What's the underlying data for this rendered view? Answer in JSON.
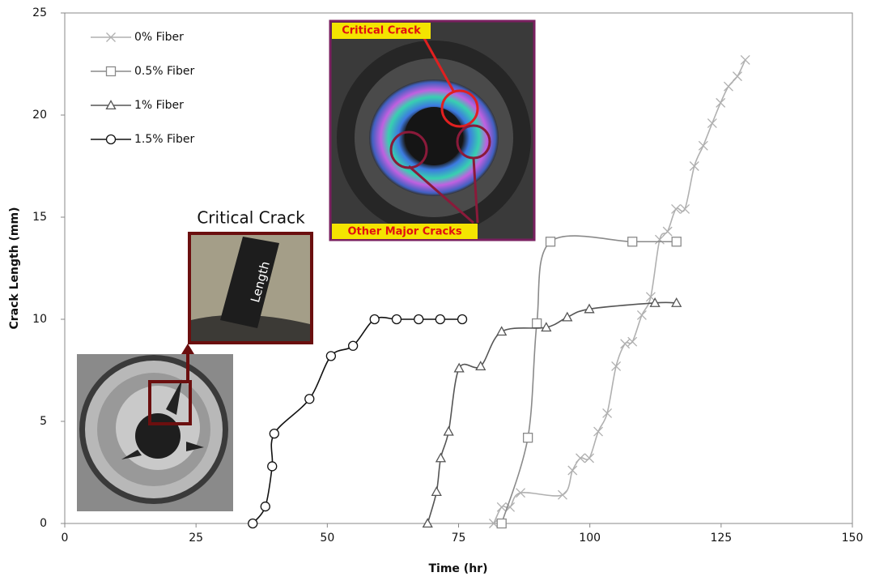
{
  "chart_data": {
    "type": "line",
    "x_label": "Time (hr)",
    "y_label": "Crack Length (mm)",
    "xlim": [
      0,
      150
    ],
    "xticks": [
      0,
      25,
      50,
      75,
      100,
      125,
      150
    ],
    "ylim": [
      0,
      25
    ],
    "yticks": [
      0,
      5,
      10,
      15,
      20,
      25
    ],
    "legend": "upper left",
    "grid": false,
    "annotations": [
      "Critical Crack",
      "Length",
      "Critical Crack",
      "Other Major Cracks"
    ],
    "series": [
      {
        "name": "0% Fiber",
        "color": "#b0b0b0",
        "marker": "x",
        "x": [
          81.7,
          83.2,
          84.8,
          86.8,
          94.8,
          96.7,
          98.2,
          99.9,
          101.6,
          103.3,
          105.0,
          106.7,
          108.1,
          109.9,
          111.6,
          113.3,
          114.8,
          116.4,
          118.1,
          119.9,
          121.6,
          123.3,
          124.9,
          126.4,
          128.1,
          129.6
        ],
        "values": [
          0,
          0.8,
          0.8,
          1.5,
          1.4,
          2.6,
          3.2,
          3.2,
          4.5,
          5.4,
          7.7,
          8.8,
          8.9,
          10.2,
          11.1,
          13.9,
          14.3,
          15.4,
          15.4,
          17.5,
          18.5,
          19.6,
          20.6,
          21.4,
          21.9,
          22.7
        ]
      },
      {
        "name": "0.5% Fiber",
        "color": "#8a8a8a",
        "marker": "square",
        "x": [
          83.2,
          88.2,
          89.9,
          92.5,
          108.1,
          116.5
        ],
        "values": [
          0,
          4.2,
          9.8,
          13.8,
          13.8,
          13.8
        ]
      },
      {
        "name": "1% Fiber",
        "color": "#555555",
        "marker": "triangle",
        "x": [
          69.1,
          70.8,
          71.6,
          73.1,
          75.1,
          79.2,
          83.2,
          91.7,
          95.7,
          99.9,
          112.4,
          116.5
        ],
        "values": [
          0,
          1.55,
          3.2,
          4.5,
          7.6,
          7.7,
          9.4,
          9.6,
          10.1,
          10.5,
          10.8,
          10.8
        ]
      },
      {
        "name": "1.5% Fiber",
        "color": "#111111",
        "marker": "circle",
        "x": [
          35.8,
          38.2,
          39.5,
          39.9,
          46.6,
          50.7,
          54.9,
          59.0,
          63.2,
          67.4,
          71.5,
          75.7
        ],
        "values": [
          0,
          0.83,
          2.8,
          4.4,
          6.1,
          8.2,
          8.7,
          10.0,
          10.0,
          10.0,
          10.0,
          10.0
        ]
      }
    ]
  }
}
